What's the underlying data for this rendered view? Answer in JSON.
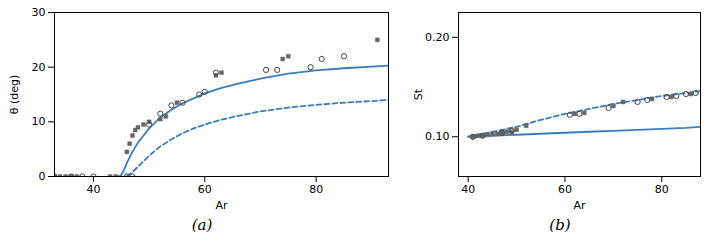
{
  "chart_data": [
    {
      "type": "line",
      "title": "(a)",
      "xlabel": "Ar",
      "ylabel": "θ (deg)",
      "xlim": [
        33,
        93
      ],
      "ylim": [
        0,
        30
      ],
      "xticks": [
        40,
        60,
        80
      ],
      "yticks": [
        0,
        10,
        20,
        30
      ],
      "series": [
        {
          "type": "line",
          "line_style": "solid",
          "color": "#3a7dbf",
          "x": [
            44.5,
            45.0,
            45.5,
            46.0,
            47.0,
            48.0,
            49.0,
            50.0,
            52.0,
            54.0,
            56.0,
            58.0,
            60.0,
            63.0,
            66.0,
            70.0,
            75.0,
            80.0,
            85.0,
            90.0,
            93.0
          ],
          "values": [
            0.0,
            0.3,
            1.2,
            2.5,
            4.5,
            6.2,
            7.5,
            8.8,
            10.8,
            12.2,
            13.4,
            14.3,
            15.2,
            16.2,
            17.0,
            17.9,
            18.8,
            19.4,
            19.8,
            20.1,
            20.3
          ]
        },
        {
          "type": "line",
          "line_style": "dashed",
          "color": "#3a7dbf",
          "x": [
            46.0,
            47.0,
            48.0,
            50.0,
            52.0,
            54.0,
            56.0,
            58.0,
            60.0,
            63.0,
            66.0,
            70.0,
            75.0,
            80.0,
            85.0,
            90.0,
            93.0
          ],
          "values": [
            0.1,
            0.8,
            1.8,
            3.8,
            5.5,
            6.8,
            7.9,
            8.8,
            9.5,
            10.4,
            11.1,
            11.9,
            12.6,
            13.1,
            13.5,
            13.8,
            14.0
          ]
        },
        {
          "type": "scatter",
          "marker": "square",
          "color": "#666666",
          "x": [
            33,
            34,
            35,
            36,
            37,
            43,
            44,
            46,
            46.5,
            47,
            47.5,
            48,
            49,
            50,
            52,
            53,
            55,
            62,
            63,
            74,
            75,
            91
          ],
          "values": [
            0,
            0,
            0,
            0,
            0,
            0,
            0,
            4.5,
            6.0,
            7.5,
            8.5,
            9.0,
            9.5,
            10.0,
            10.5,
            11.0,
            13.5,
            18.5,
            19.0,
            21.5,
            22.0,
            25.0
          ]
        },
        {
          "type": "scatter",
          "marker": "open_circle",
          "color": "#444444",
          "x": [
            33,
            36,
            38,
            40,
            46,
            47,
            50,
            52,
            54,
            56,
            59,
            60,
            62,
            71,
            73,
            79,
            81,
            85
          ],
          "values": [
            0,
            0,
            0,
            0,
            0,
            0,
            9.5,
            11.5,
            13.0,
            13.5,
            15.0,
            15.5,
            19.0,
            19.5,
            19.5,
            20.0,
            21.5,
            22.0
          ]
        }
      ]
    },
    {
      "type": "line",
      "title": "(b)",
      "xlabel": "Ar",
      "ylabel": "St",
      "xlim": [
        38,
        88
      ],
      "ylim": [
        0.06,
        0.225
      ],
      "xticks": [
        40,
        60,
        80
      ],
      "yticks": [
        0.1,
        0.2
      ],
      "series": [
        {
          "type": "line",
          "line_style": "solid",
          "color": "#3a7dbf",
          "x": [
            40,
            45,
            50,
            55,
            60,
            65,
            70,
            75,
            80,
            85,
            88
          ],
          "values": [
            0.1,
            0.101,
            0.102,
            0.103,
            0.104,
            0.105,
            0.106,
            0.107,
            0.108,
            0.109,
            0.11
          ]
        },
        {
          "type": "line",
          "line_style": "dashed",
          "color": "#3a7dbf",
          "x": [
            40,
            45,
            50,
            55,
            60,
            65,
            70,
            75,
            80,
            85,
            88
          ],
          "values": [
            0.1,
            0.105,
            0.11,
            0.117,
            0.123,
            0.128,
            0.133,
            0.137,
            0.141,
            0.144,
            0.146
          ]
        },
        {
          "type": "scatter",
          "marker": "square",
          "color": "#666666",
          "x": [
            41,
            42,
            43,
            44,
            45,
            46,
            47,
            48,
            49,
            50,
            52,
            62,
            64,
            70,
            72,
            78,
            82,
            86
          ],
          "values": [
            0.1,
            0.101,
            0.101,
            0.102,
            0.103,
            0.103,
            0.104,
            0.105,
            0.105,
            0.107,
            0.111,
            0.123,
            0.124,
            0.131,
            0.135,
            0.138,
            0.14,
            0.143
          ]
        },
        {
          "type": "scatter",
          "marker": "open_circle",
          "color": "#444444",
          "x": [
            41,
            43,
            47,
            49,
            61,
            63,
            69,
            75,
            77,
            81,
            83,
            85,
            87
          ],
          "values": [
            0.1,
            0.101,
            0.104,
            0.106,
            0.122,
            0.123,
            0.129,
            0.135,
            0.137,
            0.14,
            0.141,
            0.143,
            0.144
          ]
        }
      ]
    }
  ]
}
